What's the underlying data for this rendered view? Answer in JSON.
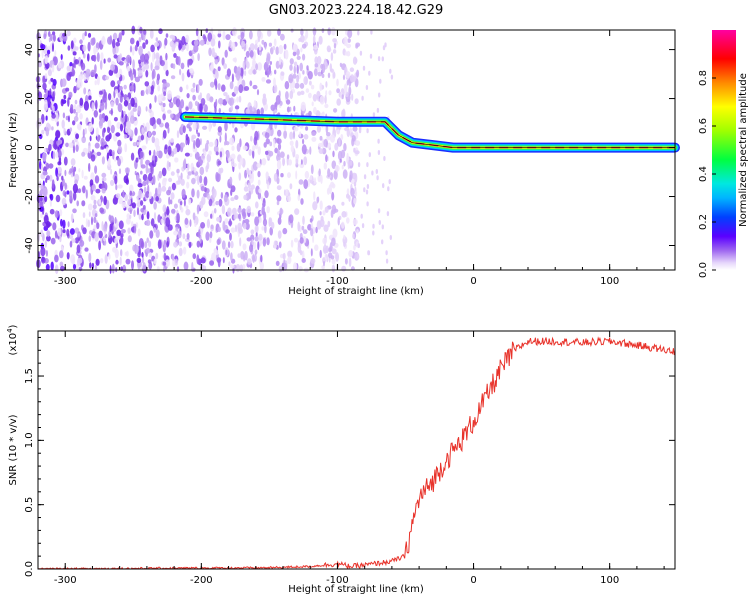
{
  "figure_title": "GN03.2023.224.18.42.G29",
  "chart_data": [
    {
      "type": "heatmap",
      "xlabel": "Height of straight line (km)",
      "ylabel": "Frequency (Hz)",
      "xlim": [
        -320,
        148
      ],
      "ylim": [
        -50,
        48
      ],
      "x_ticks": [
        -300,
        -200,
        -100,
        0,
        100
      ],
      "y_ticks": [
        -40,
        -20,
        0,
        20,
        40
      ],
      "colorbar": {
        "label": "Normalized spectral amplitude",
        "range": [
          0,
          1
        ],
        "ticks": [
          "0.0",
          "0.2",
          "0.4",
          "0.6",
          "0.8"
        ],
        "tick_values": [
          0.0,
          0.2,
          0.4,
          0.6,
          0.8
        ],
        "colormap": "rainbow"
      },
      "noise_region_x": [
        -320,
        -85
      ],
      "ridge": [
        {
          "x": -212,
          "y": 12.5
        },
        {
          "x": -150,
          "y": 11.5
        },
        {
          "x": -100,
          "y": 10.5
        },
        {
          "x": -65,
          "y": 10.5
        },
        {
          "x": -55,
          "y": 5
        },
        {
          "x": -45,
          "y": 2
        },
        {
          "x": -30,
          "y": 1
        },
        {
          "x": -15,
          "y": 0
        },
        {
          "x": 148,
          "y": 0
        }
      ]
    },
    {
      "type": "line",
      "xlabel": "Height of straight line (km)",
      "ylabel": "SNR (10 * v/v)",
      "y_scale_label": "(x10",
      "y_scale_exp": "4",
      "y_scale_close": ")",
      "xlim": [
        -320,
        148
      ],
      "ylim": [
        0,
        1.85
      ],
      "x_ticks": [
        -300,
        -200,
        -100,
        0,
        100
      ],
      "y_ticks": [
        0.0,
        0.5,
        1.0,
        1.5
      ],
      "y_tick_labels": [
        "0.0",
        "0.5",
        "1.0",
        "1.5"
      ],
      "series": [
        {
          "color": "#e8332b",
          "x": [
            -320,
            -150,
            -120,
            -100,
            -90,
            -80,
            -60,
            -50,
            -45,
            -40,
            -30,
            -20,
            -10,
            0,
            10,
            20,
            30,
            40,
            60,
            80,
            100,
            120,
            148
          ],
          "y": [
            0.0,
            0.01,
            0.02,
            0.04,
            0.02,
            0.03,
            0.06,
            0.1,
            0.35,
            0.55,
            0.68,
            0.85,
            0.98,
            1.15,
            1.35,
            1.55,
            1.7,
            1.77,
            1.77,
            1.76,
            1.77,
            1.74,
            1.69
          ]
        }
      ]
    }
  ]
}
